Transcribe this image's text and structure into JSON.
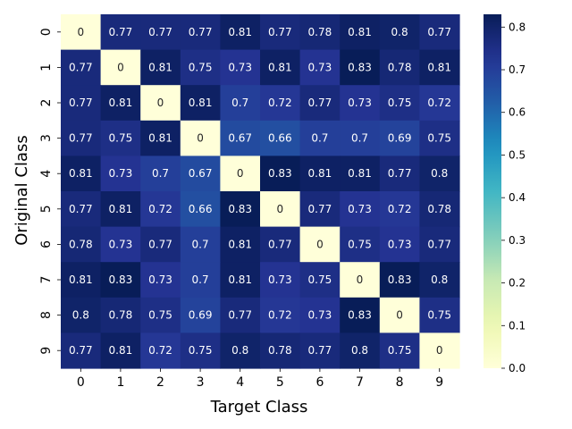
{
  "chart_data": {
    "type": "heatmap",
    "title": "",
    "xlabel": "Target Class",
    "ylabel": "Original Class",
    "x_categories": [
      "0",
      "1",
      "2",
      "3",
      "4",
      "5",
      "6",
      "7",
      "8",
      "9"
    ],
    "y_categories": [
      "0",
      "1",
      "2",
      "3",
      "4",
      "5",
      "6",
      "7",
      "8",
      "9"
    ],
    "values": [
      [
        0,
        0.77,
        0.77,
        0.77,
        0.81,
        0.77,
        0.78,
        0.81,
        0.8,
        0.77
      ],
      [
        0.77,
        0,
        0.81,
        0.75,
        0.73,
        0.81,
        0.73,
        0.83,
        0.78,
        0.81
      ],
      [
        0.77,
        0.81,
        0,
        0.81,
        0.7,
        0.72,
        0.77,
        0.73,
        0.75,
        0.72
      ],
      [
        0.77,
        0.75,
        0.81,
        0,
        0.67,
        0.66,
        0.7,
        0.7,
        0.69,
        0.75
      ],
      [
        0.81,
        0.73,
        0.7,
        0.67,
        0,
        0.83,
        0.81,
        0.81,
        0.77,
        0.8
      ],
      [
        0.77,
        0.81,
        0.72,
        0.66,
        0.83,
        0,
        0.77,
        0.73,
        0.72,
        0.78
      ],
      [
        0.78,
        0.73,
        0.77,
        0.7,
        0.81,
        0.77,
        0,
        0.75,
        0.73,
        0.77
      ],
      [
        0.81,
        0.83,
        0.73,
        0.7,
        0.81,
        0.73,
        0.75,
        0,
        0.83,
        0.8
      ],
      [
        0.8,
        0.78,
        0.75,
        0.69,
        0.77,
        0.72,
        0.73,
        0.83,
        0,
        0.75
      ],
      [
        0.77,
        0.81,
        0.72,
        0.75,
        0.8,
        0.78,
        0.77,
        0.8,
        0.75,
        0
      ]
    ],
    "colormap": "YlGnBu",
    "colorbar": {
      "min": 0.0,
      "max": 0.83,
      "ticks": [
        0.0,
        0.1,
        0.2,
        0.3,
        0.4,
        0.5,
        0.6,
        0.7,
        0.8
      ],
      "tick_labels": [
        "0.0",
        "0.1",
        "0.2",
        "0.3",
        "0.4",
        "0.5",
        "0.6",
        "0.7",
        "0.8"
      ],
      "position": "right"
    },
    "grid": false
  }
}
